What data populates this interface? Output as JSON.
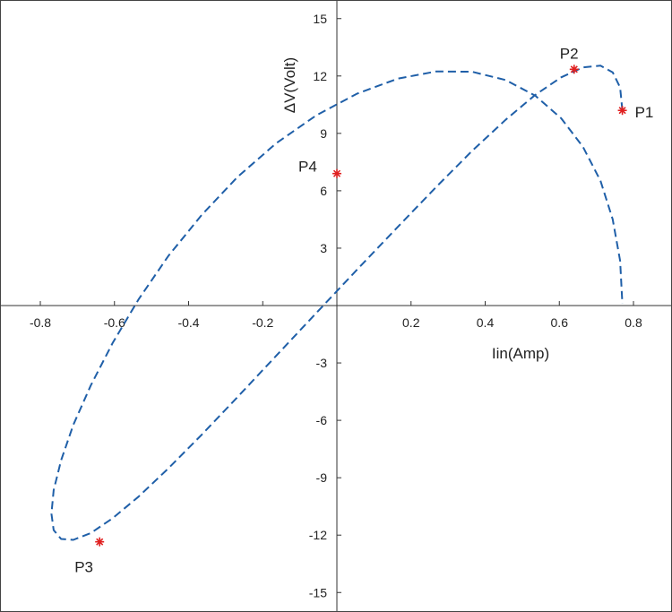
{
  "chart_data": {
    "type": "line",
    "title": "",
    "xlabel": "Iin(Amp)",
    "ylabel": "ΔV(Volt)",
    "xlim": [
      -0.82,
      0.88
    ],
    "ylim": [
      -16,
      16
    ],
    "grid": false,
    "x_ticks": [
      -0.8,
      -0.6,
      -0.4,
      -0.2,
      0.2,
      0.4,
      0.6,
      0.8
    ],
    "x_tick_labels": [
      "-0.8",
      "-0.6",
      "-0.4",
      "-0.2",
      "0.2",
      "0.4",
      "0.6",
      "0.8"
    ],
    "y_ticks": [
      -15,
      -12,
      -9,
      -6,
      -3,
      3,
      6,
      9,
      12,
      15
    ],
    "y_tick_labels": [
      "-15",
      "-12",
      "-9",
      "-6",
      "-3",
      "3",
      "6",
      "9",
      "12",
      "15"
    ],
    "series": [
      {
        "style": "dashed",
        "color": "#1f5fa8",
        "x": [
          0.77,
          0.764,
          0.744,
          0.711,
          0.664,
          0.605,
          0.535,
          0.455,
          0.365,
          0.268,
          0.164,
          0.055,
          -0.055,
          -0.164,
          -0.268,
          -0.365,
          -0.455,
          -0.535,
          -0.605,
          -0.664,
          -0.711,
          -0.744,
          -0.764,
          -0.77,
          -0.764,
          -0.744,
          -0.711,
          -0.664,
          -0.605,
          -0.535,
          -0.455,
          -0.365,
          -0.268,
          -0.164,
          -0.055,
          0.055,
          0.164,
          0.268,
          0.365,
          0.455,
          0.535,
          0.605,
          0.664,
          0.711,
          0.744,
          0.764,
          0.77
        ],
        "y": [
          10.2,
          11.4,
          12.19,
          12.54,
          12.45,
          11.93,
          11.01,
          9.71,
          8.09,
          6.2,
          4.11,
          1.89,
          -0.38,
          -2.63,
          -4.78,
          -6.76,
          -8.52,
          -9.99,
          -11.12,
          -11.89,
          -12.25,
          -12.2,
          -11.74,
          -10.88,
          -9.65,
          -8.09,
          -6.24,
          -4.18,
          -1.96,
          0.32,
          2.58,
          4.73,
          6.72,
          8.48,
          9.95,
          11.08,
          11.86,
          12.24,
          12.22,
          11.79,
          10.97,
          9.79,
          8.29,
          6.52,
          4.51,
          2.34,
          0.1
        ]
      }
    ],
    "markers": [
      {
        "label": "P1",
        "x": 0.77,
        "y": 10.2,
        "color": "#e02020"
      },
      {
        "label": "P2",
        "x": 0.64,
        "y": 12.35,
        "color": "#e02020"
      },
      {
        "label": "P3",
        "x": -0.64,
        "y": -12.35,
        "color": "#e02020"
      },
      {
        "label": "P4",
        "x": 0.0,
        "y": 6.9,
        "color": "#e02020"
      }
    ]
  }
}
